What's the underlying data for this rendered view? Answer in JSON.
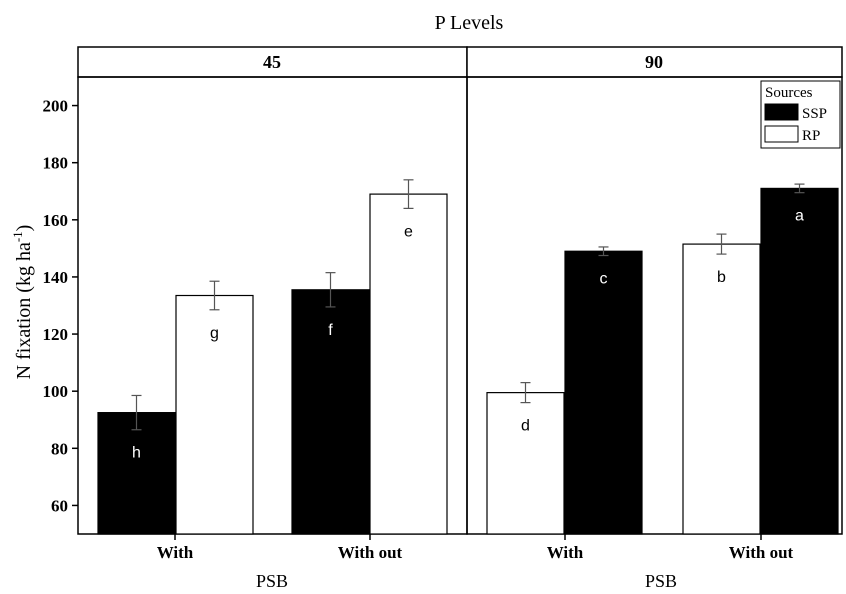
{
  "chart_data": {
    "type": "bar",
    "title": "P Levels",
    "ylabel": "N fixation (kg ha",
    "ylabel_superscript": "-1",
    "ylabel_close": ")",
    "ylim": [
      50,
      210
    ],
    "yticks": [
      60,
      80,
      100,
      120,
      140,
      160,
      180,
      200
    ],
    "grid": false,
    "legend": {
      "title": "Sources",
      "placement": "top-right",
      "entries": [
        {
          "name": "SSP",
          "color": "#000000"
        },
        {
          "name": "RP",
          "color": "#ffffff"
        }
      ]
    },
    "panels": [
      {
        "label": "45",
        "xlabel": "PSB",
        "categories": [
          "With",
          "With out"
        ],
        "bars": [
          {
            "category": "With",
            "source": "SSP",
            "value": 92.5,
            "error": 6.0,
            "letter": "h"
          },
          {
            "category": "With",
            "source": "RP",
            "value": 133.5,
            "error": 5.0,
            "letter": "g"
          },
          {
            "category": "With out",
            "source": "SSP",
            "value": 135.5,
            "error": 6.0,
            "letter": "f"
          },
          {
            "category": "With out",
            "source": "RP",
            "value": 169.0,
            "error": 5.0,
            "letter": "e"
          }
        ]
      },
      {
        "label": "90",
        "xlabel": "PSB",
        "categories": [
          "With",
          "With out"
        ],
        "bars": [
          {
            "category": "With",
            "source": "RP",
            "value": 99.5,
            "error": 3.5,
            "letter": "d"
          },
          {
            "category": "With",
            "source": "SSP",
            "value": 149.0,
            "error": 1.5,
            "letter": "c"
          },
          {
            "category": "With out",
            "source": "RP",
            "value": 151.5,
            "error": 3.5,
            "letter": "b"
          },
          {
            "category": "With out",
            "source": "SSP",
            "value": 171.0,
            "error": 1.5,
            "letter": "a"
          }
        ]
      }
    ]
  }
}
